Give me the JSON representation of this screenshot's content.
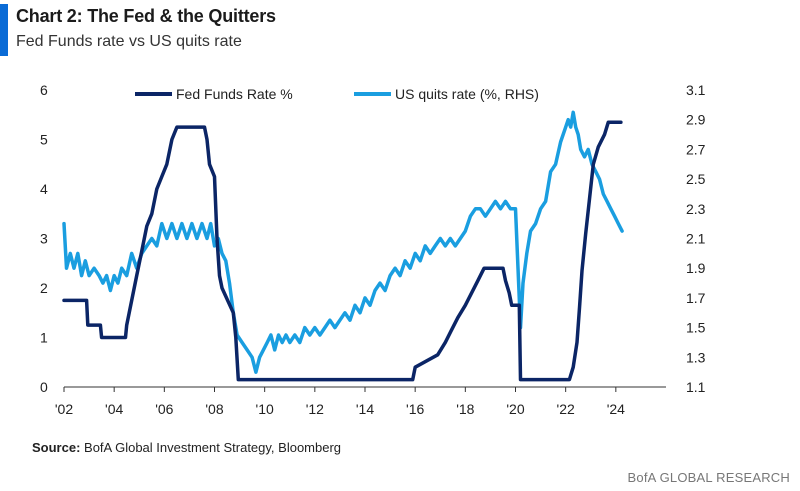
{
  "header": {
    "title": "Chart 2: The Fed & the Quitters",
    "subtitle": "Fed Funds rate vs US quits rate"
  },
  "footer": {
    "source_label": "Source:",
    "source_text": " BofA Global Investment Strategy, Bloomberg",
    "brand": "BofA GLOBAL RESEARCH"
  },
  "colors": {
    "accent": "#0a6bd6",
    "fed_funds": "#0b2566",
    "quits": "#1a9ee0"
  },
  "chart_data": {
    "type": "line",
    "title": "Chart 2: The Fed & the Quitters",
    "x_tick_labels": [
      "'02",
      "'04",
      "'06",
      "'08",
      "'10",
      "'12",
      "'14",
      "'16",
      "'18",
      "'20",
      "'22",
      "'24"
    ],
    "x_tick_years": [
      2002,
      2004,
      2006,
      2008,
      2010,
      2012,
      2014,
      2016,
      2018,
      2020,
      2022,
      2024
    ],
    "xlim": [
      2002,
      2026
    ],
    "y_left": {
      "range": [
        0,
        6
      ],
      "ticks": [
        "0",
        "1",
        "2",
        "3",
        "4",
        "5",
        "6"
      ]
    },
    "y_right": {
      "range": [
        1.1,
        3.1
      ],
      "ticks": [
        "1.1",
        "1.3",
        "1.5",
        "1.7",
        "1.9",
        "2.1",
        "2.3",
        "2.5",
        "2.7",
        "2.9",
        "3.1"
      ]
    },
    "legend_position": "top",
    "series": [
      {
        "name": "Fed Funds Rate %",
        "axis": "left",
        "points": [
          [
            2002.0,
            1.75
          ],
          [
            2002.9,
            1.75
          ],
          [
            2002.95,
            1.25
          ],
          [
            2003.45,
            1.25
          ],
          [
            2003.5,
            1.0
          ],
          [
            2004.45,
            1.0
          ],
          [
            2004.5,
            1.25
          ],
          [
            2004.7,
            1.75
          ],
          [
            2004.9,
            2.25
          ],
          [
            2005.1,
            2.75
          ],
          [
            2005.3,
            3.25
          ],
          [
            2005.5,
            3.5
          ],
          [
            2005.7,
            4.0
          ],
          [
            2005.9,
            4.25
          ],
          [
            2006.1,
            4.5
          ],
          [
            2006.3,
            5.0
          ],
          [
            2006.5,
            5.25
          ],
          [
            2007.6,
            5.25
          ],
          [
            2007.7,
            5.0
          ],
          [
            2007.8,
            4.5
          ],
          [
            2008.0,
            4.25
          ],
          [
            2008.1,
            3.0
          ],
          [
            2008.2,
            2.25
          ],
          [
            2008.3,
            2.0
          ],
          [
            2008.75,
            1.5
          ],
          [
            2008.85,
            1.0
          ],
          [
            2008.95,
            0.15
          ],
          [
            2015.9,
            0.15
          ],
          [
            2016.0,
            0.4
          ],
          [
            2016.9,
            0.65
          ],
          [
            2017.2,
            0.9
          ],
          [
            2017.45,
            1.15
          ],
          [
            2017.7,
            1.4
          ],
          [
            2018.0,
            1.65
          ],
          [
            2018.25,
            1.9
          ],
          [
            2018.5,
            2.15
          ],
          [
            2018.75,
            2.4
          ],
          [
            2019.5,
            2.4
          ],
          [
            2019.6,
            2.15
          ],
          [
            2019.75,
            1.9
          ],
          [
            2019.85,
            1.65
          ],
          [
            2020.15,
            1.65
          ],
          [
            2020.2,
            0.15
          ],
          [
            2022.15,
            0.15
          ],
          [
            2022.3,
            0.4
          ],
          [
            2022.45,
            0.9
          ],
          [
            2022.55,
            1.6
          ],
          [
            2022.65,
            2.35
          ],
          [
            2022.8,
            3.1
          ],
          [
            2022.95,
            3.8
          ],
          [
            2023.1,
            4.5
          ],
          [
            2023.3,
            4.85
          ],
          [
            2023.55,
            5.1
          ],
          [
            2023.7,
            5.35
          ],
          [
            2024.2,
            5.35
          ]
        ]
      },
      {
        "name": "US quits rate (%, RHS)",
        "axis": "right",
        "points": [
          [
            2002.0,
            2.2
          ],
          [
            2002.1,
            1.9
          ],
          [
            2002.25,
            2.0
          ],
          [
            2002.4,
            1.9
          ],
          [
            2002.55,
            2.0
          ],
          [
            2002.7,
            1.85
          ],
          [
            2002.85,
            1.95
          ],
          [
            2003.0,
            1.85
          ],
          [
            2003.2,
            1.9
          ],
          [
            2003.4,
            1.85
          ],
          [
            2003.55,
            1.8
          ],
          [
            2003.7,
            1.85
          ],
          [
            2003.85,
            1.75
          ],
          [
            2004.0,
            1.85
          ],
          [
            2004.15,
            1.8
          ],
          [
            2004.3,
            1.9
          ],
          [
            2004.5,
            1.85
          ],
          [
            2004.7,
            2.0
          ],
          [
            2004.9,
            1.9
          ],
          [
            2005.1,
            2.0
          ],
          [
            2005.3,
            2.05
          ],
          [
            2005.5,
            2.1
          ],
          [
            2005.7,
            2.05
          ],
          [
            2005.9,
            2.2
          ],
          [
            2006.1,
            2.1
          ],
          [
            2006.3,
            2.2
          ],
          [
            2006.5,
            2.1
          ],
          [
            2006.7,
            2.2
          ],
          [
            2006.9,
            2.1
          ],
          [
            2007.1,
            2.2
          ],
          [
            2007.3,
            2.1
          ],
          [
            2007.5,
            2.2
          ],
          [
            2007.7,
            2.1
          ],
          [
            2007.85,
            2.2
          ],
          [
            2008.0,
            2.05
          ],
          [
            2008.15,
            2.1
          ],
          [
            2008.3,
            2.0
          ],
          [
            2008.45,
            1.95
          ],
          [
            2008.6,
            1.8
          ],
          [
            2008.75,
            1.6
          ],
          [
            2008.9,
            1.45
          ],
          [
            2009.1,
            1.4
          ],
          [
            2009.3,
            1.35
          ],
          [
            2009.5,
            1.3
          ],
          [
            2009.65,
            1.2
          ],
          [
            2009.8,
            1.3
          ],
          [
            2009.95,
            1.35
          ],
          [
            2010.1,
            1.4
          ],
          [
            2010.25,
            1.45
          ],
          [
            2010.4,
            1.35
          ],
          [
            2010.55,
            1.45
          ],
          [
            2010.7,
            1.4
          ],
          [
            2010.85,
            1.45
          ],
          [
            2011.0,
            1.4
          ],
          [
            2011.2,
            1.45
          ],
          [
            2011.4,
            1.4
          ],
          [
            2011.6,
            1.5
          ],
          [
            2011.8,
            1.45
          ],
          [
            2012.0,
            1.5
          ],
          [
            2012.2,
            1.45
          ],
          [
            2012.4,
            1.5
          ],
          [
            2012.6,
            1.55
          ],
          [
            2012.8,
            1.5
          ],
          [
            2013.0,
            1.55
          ],
          [
            2013.2,
            1.6
          ],
          [
            2013.4,
            1.55
          ],
          [
            2013.6,
            1.65
          ],
          [
            2013.8,
            1.6
          ],
          [
            2014.0,
            1.7
          ],
          [
            2014.2,
            1.65
          ],
          [
            2014.4,
            1.75
          ],
          [
            2014.6,
            1.8
          ],
          [
            2014.8,
            1.75
          ],
          [
            2015.0,
            1.85
          ],
          [
            2015.2,
            1.9
          ],
          [
            2015.4,
            1.85
          ],
          [
            2015.6,
            1.95
          ],
          [
            2015.8,
            1.9
          ],
          [
            2016.0,
            2.0
          ],
          [
            2016.2,
            1.95
          ],
          [
            2016.4,
            2.05
          ],
          [
            2016.6,
            2.0
          ],
          [
            2016.8,
            2.05
          ],
          [
            2017.0,
            2.1
          ],
          [
            2017.2,
            2.05
          ],
          [
            2017.4,
            2.1
          ],
          [
            2017.6,
            2.05
          ],
          [
            2017.8,
            2.1
          ],
          [
            2018.0,
            2.15
          ],
          [
            2018.2,
            2.25
          ],
          [
            2018.4,
            2.3
          ],
          [
            2018.6,
            2.3
          ],
          [
            2018.8,
            2.25
          ],
          [
            2019.0,
            2.3
          ],
          [
            2019.2,
            2.35
          ],
          [
            2019.4,
            2.3
          ],
          [
            2019.6,
            2.35
          ],
          [
            2019.8,
            2.3
          ],
          [
            2020.0,
            2.3
          ],
          [
            2020.1,
            1.9
          ],
          [
            2020.2,
            1.5
          ],
          [
            2020.3,
            1.8
          ],
          [
            2020.45,
            2.0
          ],
          [
            2020.6,
            2.15
          ],
          [
            2020.8,
            2.2
          ],
          [
            2021.0,
            2.3
          ],
          [
            2021.2,
            2.35
          ],
          [
            2021.4,
            2.55
          ],
          [
            2021.6,
            2.6
          ],
          [
            2021.8,
            2.75
          ],
          [
            2022.0,
            2.85
          ],
          [
            2022.1,
            2.9
          ],
          [
            2022.2,
            2.85
          ],
          [
            2022.3,
            2.95
          ],
          [
            2022.4,
            2.85
          ],
          [
            2022.5,
            2.8
          ],
          [
            2022.6,
            2.7
          ],
          [
            2022.75,
            2.65
          ],
          [
            2022.9,
            2.7
          ],
          [
            2023.05,
            2.6
          ],
          [
            2023.2,
            2.55
          ],
          [
            2023.35,
            2.5
          ],
          [
            2023.5,
            2.4
          ],
          [
            2023.65,
            2.35
          ],
          [
            2023.8,
            2.3
          ],
          [
            2023.95,
            2.25
          ],
          [
            2024.1,
            2.2
          ],
          [
            2024.25,
            2.15
          ]
        ]
      }
    ]
  }
}
